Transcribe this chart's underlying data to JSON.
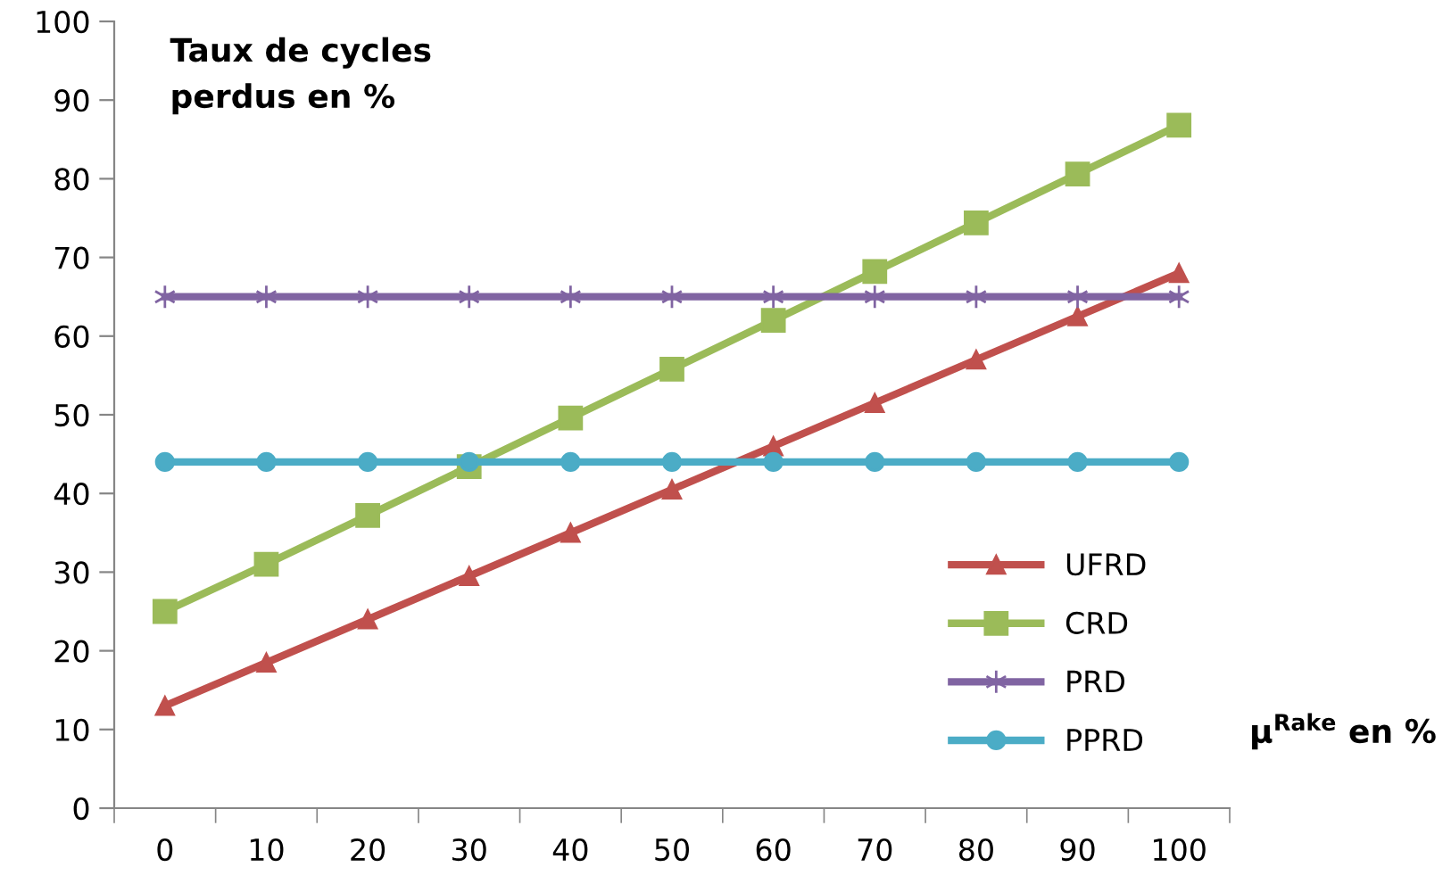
{
  "chart_data": {
    "type": "line",
    "ylabel": "Taux de cycles\nperdus en %",
    "xlabel": "μ$^{Rake}$ en %",
    "categories": [
      "0",
      "10",
      "20",
      "30",
      "40",
      "50",
      "60",
      "70",
      "80",
      "90",
      "100"
    ],
    "series": [
      {
        "name": "UFRD",
        "color": "#c0504d",
        "marker": "triangle",
        "values": [
          13,
          18.5,
          24,
          29.5,
          35,
          40.5,
          46,
          51.5,
          57,
          62.5,
          68
        ]
      },
      {
        "name": "CRD",
        "color": "#9bbb59",
        "marker": "square",
        "values": [
          25,
          31,
          37.2,
          43.4,
          49.6,
          55.8,
          62,
          68.2,
          74.4,
          80.6,
          86.8
        ]
      },
      {
        "name": "PRD",
        "color": "#8064a2",
        "marker": "cross",
        "values": [
          65,
          65,
          65,
          65,
          65,
          65,
          65,
          65,
          65,
          65,
          65
        ]
      },
      {
        "name": "PPRD",
        "color": "#4bacc6",
        "marker": "circle",
        "values": [
          44,
          44,
          44,
          44,
          44,
          44,
          44,
          44,
          44,
          44,
          44
        ]
      }
    ],
    "ylim": [
      0,
      100
    ],
    "yticks": [
      0,
      10,
      20,
      30,
      40,
      50,
      60,
      70,
      80,
      90,
      100
    ],
    "grid": false,
    "legend": "bottom right",
    "line_style": "solid"
  }
}
